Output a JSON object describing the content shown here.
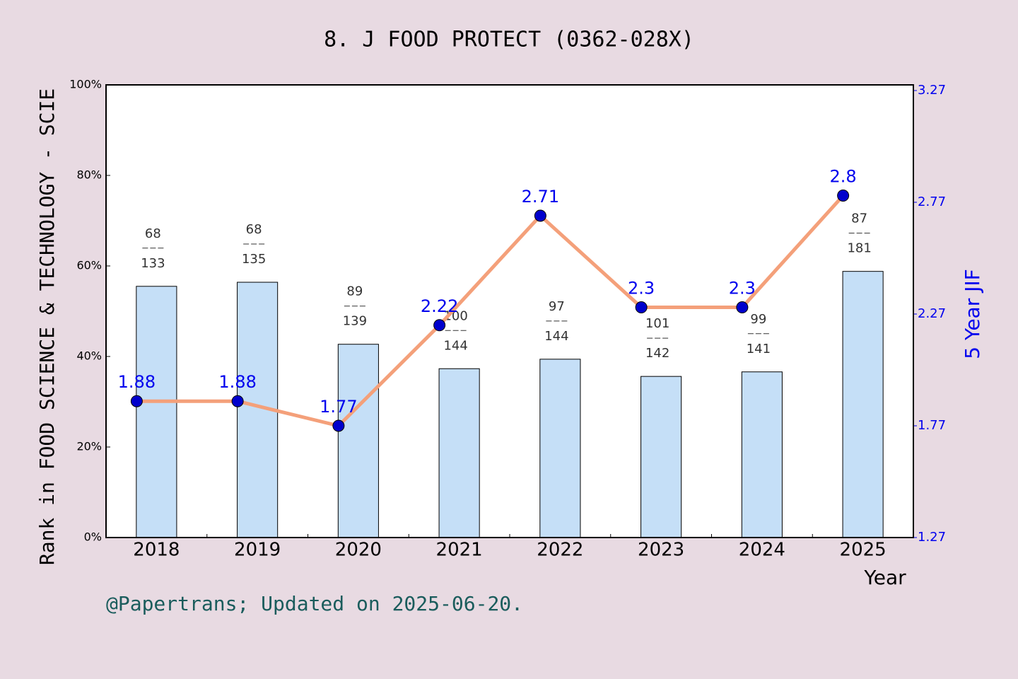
{
  "chart_data": {
    "type": "bar",
    "title": "8. J FOOD PROTECT (0362-028X)",
    "x_label": "Year",
    "y_label": "Rank in FOOD SCIENCE & TECHNOLOGY - SCIE",
    "y2_label": "5 Year JIF",
    "footer": "@Papertrans; Updated on 2025-06-20.",
    "categories": [
      "2018",
      "2019",
      "2020",
      "2021",
      "2022",
      "2023",
      "2024",
      "2025"
    ],
    "series": [
      {
        "type": "bar",
        "color": "#c5dff7",
        "values": [
          55.5,
          56.4,
          42.7,
          37.3,
          39.4,
          35.6,
          36.6,
          58.8
        ],
        "ranks": [
          68,
          68,
          89,
          100,
          97,
          101,
          99,
          87
        ],
        "totals": [
          133,
          135,
          139,
          144,
          144,
          142,
          141,
          181
        ]
      },
      {
        "type": "line",
        "axis": "y2",
        "color": "#f4a07a",
        "marker_color": "#0000cc",
        "label_color": "#0000ee",
        "values": [
          1.88,
          1.88,
          1.77,
          2.22,
          2.71,
          2.3,
          2.3,
          2.8
        ]
      }
    ],
    "ylim": [
      0,
      100
    ],
    "yticks": [
      {
        "value": 0,
        "label": "0%"
      },
      {
        "value": 20,
        "label": "20%"
      },
      {
        "value": 40,
        "label": "40%"
      },
      {
        "value": 60,
        "label": "60%"
      },
      {
        "value": 80,
        "label": "80%"
      },
      {
        "value": 100,
        "label": "100%"
      }
    ],
    "y2lim": [
      1.27,
      3.2953
    ],
    "y2ticks": [
      1.27,
      1.77,
      2.27,
      2.77,
      3.27
    ]
  }
}
